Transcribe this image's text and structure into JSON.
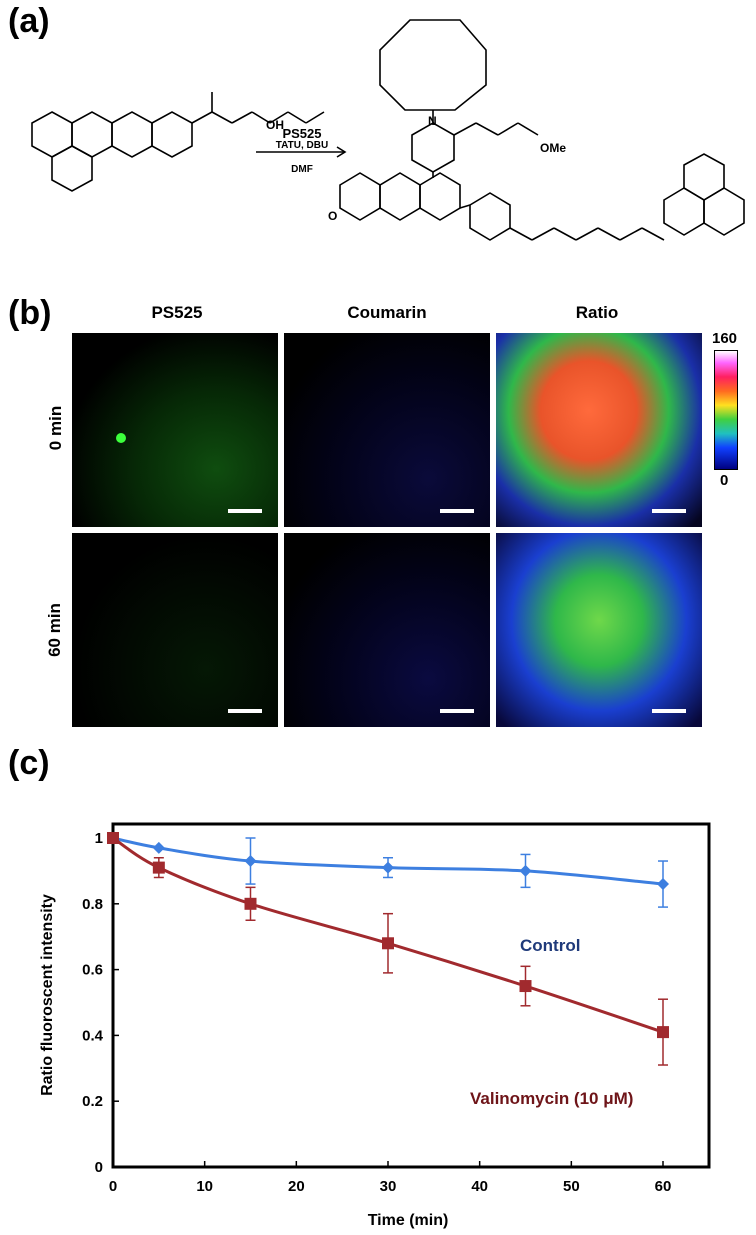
{
  "panels": {
    "a": "(a)",
    "b": "(b)",
    "c": "(c)"
  },
  "scheme": {
    "reagent": "PS525",
    "conditions": "TATU, DBU",
    "solvent": "DMF",
    "labels": {
      "oh": "OH",
      "o": "O",
      "n": "N",
      "ome": "OMe"
    }
  },
  "imaging": {
    "columns": [
      "PS525",
      "Coumarin",
      "Ratio"
    ],
    "rows": [
      "0 min",
      "60 min"
    ],
    "colorbar": {
      "max": "160",
      "min": "0"
    }
  },
  "chart_data": {
    "type": "line",
    "x": [
      0,
      5,
      15,
      30,
      45,
      60
    ],
    "xlim": [
      0,
      60
    ],
    "ylim": [
      0,
      1
    ],
    "xticks": [
      "0",
      "10",
      "20",
      "30",
      "40",
      "50",
      "60"
    ],
    "yticks": [
      "0",
      "0.2",
      "0.4",
      "0.6",
      "0.8",
      "1"
    ],
    "xlabel": "Time (min)",
    "ylabel": "Ratio fluoroscent intensity",
    "grid": false,
    "series": [
      {
        "name": "Control",
        "color": "#3d7fe0",
        "marker": "diamond",
        "values": [
          1.0,
          0.97,
          0.93,
          0.91,
          0.9,
          0.86
        ],
        "errors": [
          0,
          0,
          0.07,
          0.03,
          0.05,
          0.07
        ]
      },
      {
        "name": "Valinomycin (10 μM)",
        "color": "#a12a2e",
        "marker": "square",
        "values": [
          1.0,
          0.91,
          0.8,
          0.68,
          0.55,
          0.41
        ],
        "errors": [
          0,
          0.03,
          0.05,
          0.09,
          0.06,
          0.1
        ]
      }
    ]
  }
}
